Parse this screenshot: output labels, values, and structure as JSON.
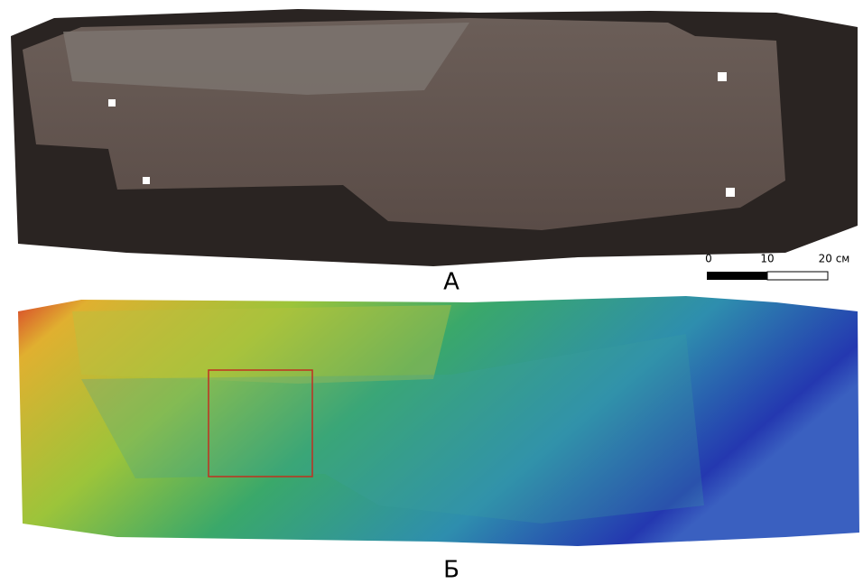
{
  "panels": [
    {
      "label": "А"
    },
    {
      "label": "Б"
    }
  ],
  "scale_bar": {
    "labels": [
      "0",
      "10",
      "20 см"
    ]
  }
}
